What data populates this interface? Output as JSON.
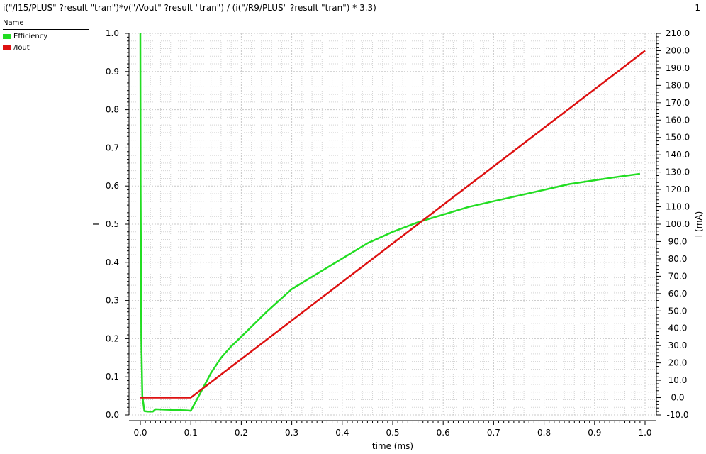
{
  "header": {
    "expression": "i(\"/I15/PLUS\" ?result \"tran\")*v(\"/Vout\" ?result \"tran\") / (i(\"/R9/PLUS\" ?result \"tran\") * 3.3)",
    "panel_number": "1"
  },
  "legend": {
    "header": "Name",
    "items": [
      {
        "label": "Efficiency",
        "color": "#22dd22"
      },
      {
        "label": "/Iout",
        "color": "#dd1111"
      }
    ]
  },
  "chart_data": {
    "type": "line",
    "xlabel": "time (ms)",
    "ylabel_left": "I",
    "ylabel_right": "I (mA)",
    "xlim": [
      0.0,
      1.0
    ],
    "ylim_left": [
      0.0,
      1.0
    ],
    "ylim_right": [
      -10.0,
      210.0
    ],
    "x_ticks": [
      "0.0",
      "0.1",
      "0.2",
      "0.3",
      "0.4",
      "0.5",
      "0.6",
      "0.7",
      "0.8",
      "0.9",
      "1.0"
    ],
    "y_ticks_left": [
      "0.0",
      "0.1",
      "0.2",
      "0.3",
      "0.4",
      "0.5",
      "0.6",
      "0.7",
      "0.8",
      "0.9",
      "1.0"
    ],
    "y_ticks_right": [
      "-10.0",
      "0.0",
      "10.0",
      "20.0",
      "30.0",
      "40.0",
      "50.0",
      "60.0",
      "70.0",
      "80.0",
      "90.0",
      "100.0",
      "110.0",
      "120.0",
      "130.0",
      "140.0",
      "150.0",
      "160.0",
      "170.0",
      "180.0",
      "190.0",
      "200.0",
      "210.0"
    ],
    "grid": true,
    "series": [
      {
        "name": "Efficiency",
        "axis": "left",
        "color": "#22dd22",
        "x": [
          0.0,
          0.0005,
          0.002,
          0.004,
          0.008,
          0.015,
          0.025,
          0.03,
          0.05,
          0.07,
          0.09,
          0.1,
          0.12,
          0.14,
          0.16,
          0.18,
          0.2,
          0.25,
          0.3,
          0.35,
          0.4,
          0.45,
          0.5,
          0.55,
          0.6,
          0.65,
          0.7,
          0.75,
          0.8,
          0.85,
          0.9,
          0.95,
          0.99
        ],
        "y": [
          1.0,
          0.6,
          0.2,
          0.05,
          0.01,
          0.009,
          0.009,
          0.015,
          0.014,
          0.013,
          0.012,
          0.011,
          0.06,
          0.11,
          0.15,
          0.18,
          0.205,
          0.27,
          0.33,
          0.37,
          0.41,
          0.45,
          0.48,
          0.505,
          0.525,
          0.545,
          0.56,
          0.575,
          0.59,
          0.605,
          0.615,
          0.625,
          0.632
        ]
      },
      {
        "name": "/Iout",
        "axis": "right",
        "color": "#dd1111",
        "x": [
          0.0,
          0.1,
          1.0
        ],
        "y": [
          0.0,
          0.0,
          200.0
        ]
      }
    ]
  }
}
